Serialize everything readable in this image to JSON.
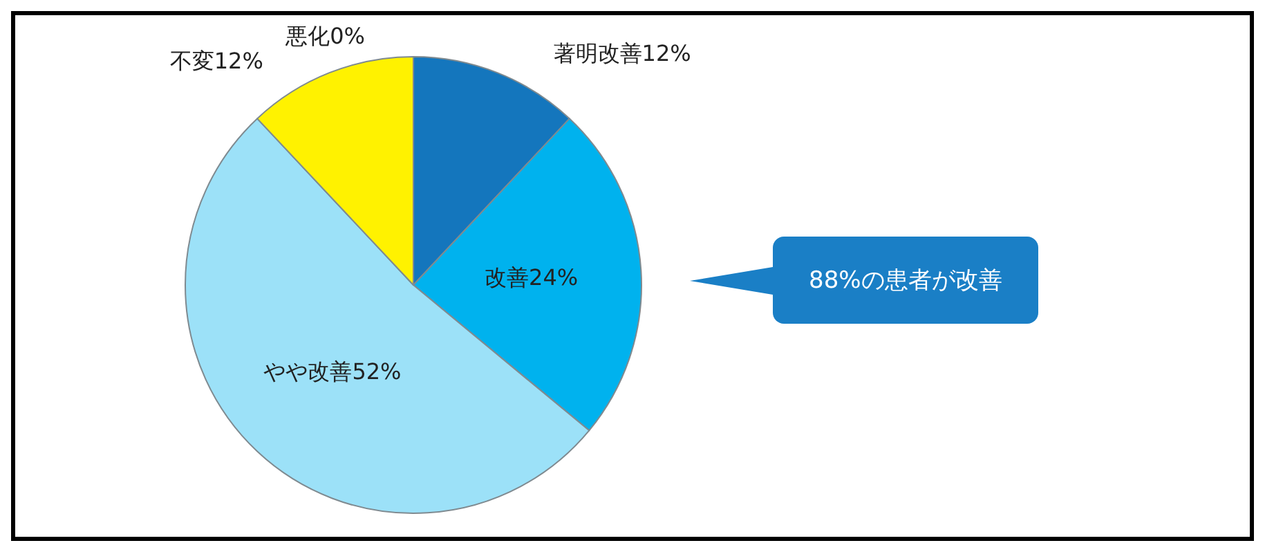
{
  "chart_data": {
    "type": "pie",
    "categories": [
      "著明改善",
      "改善",
      "やや改善",
      "不変",
      "悪化"
    ],
    "values": [
      12,
      24,
      52,
      12,
      0
    ],
    "colors": [
      "#1476bd",
      "#00b2ee",
      "#9ce1f8",
      "#fff200",
      "#c8c8c8"
    ],
    "value_labels": [
      "12%",
      "24%",
      "52%",
      "12%",
      "0%"
    ],
    "legend": false,
    "annotations": [
      "88%の患者が改善"
    ]
  }
}
